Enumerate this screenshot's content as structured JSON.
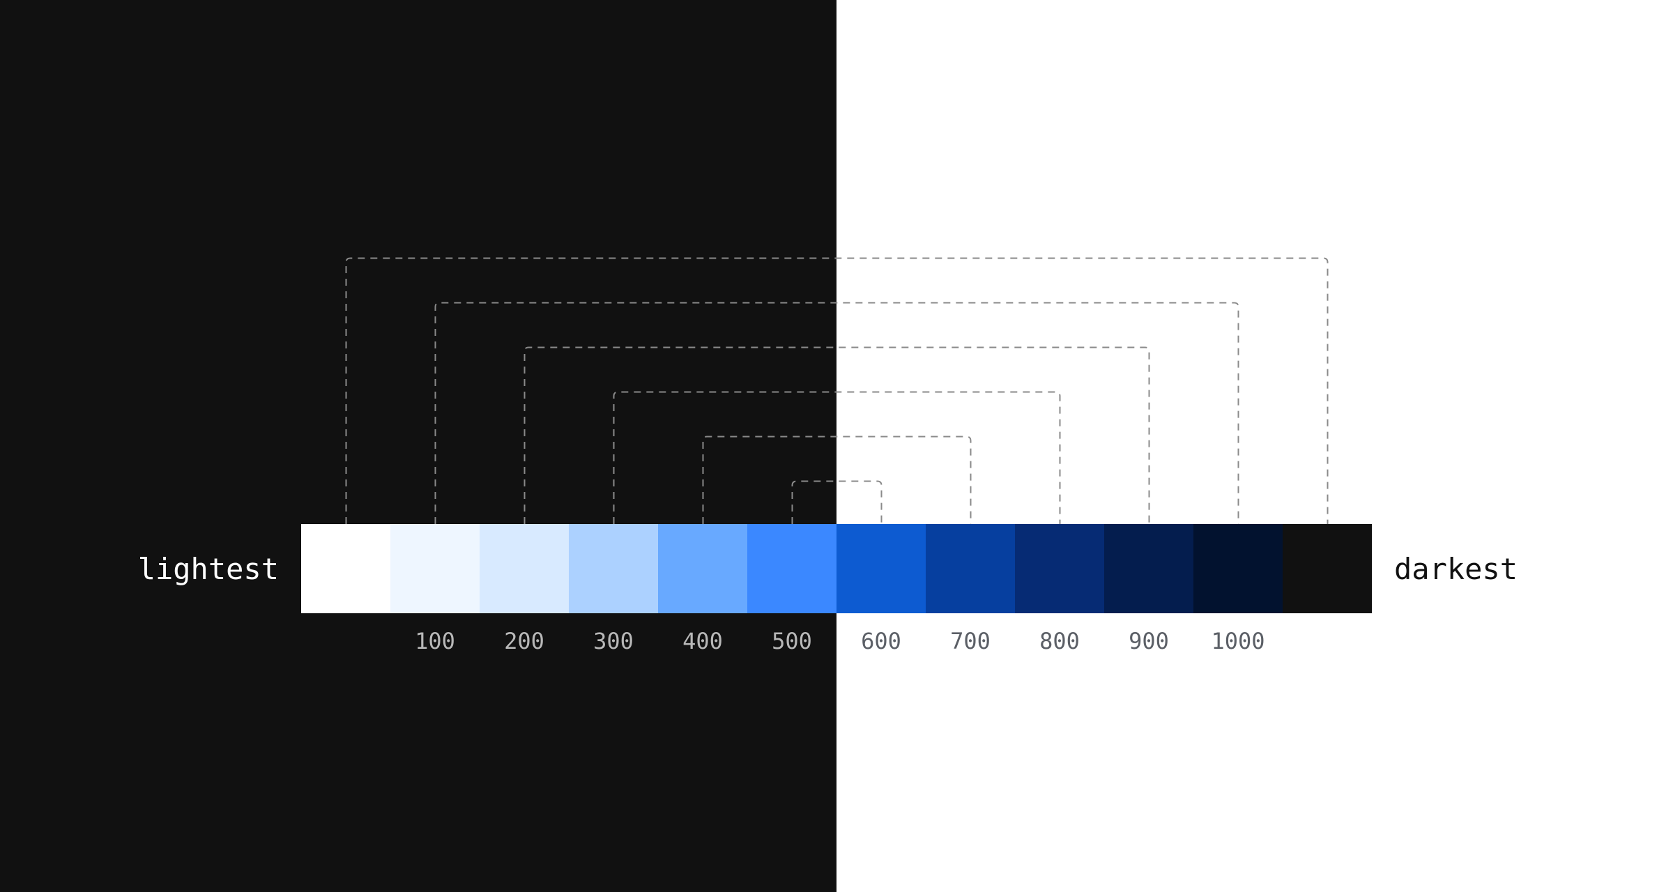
{
  "labels": {
    "lightest": "lightest",
    "darkest": "darkest"
  },
  "colors": {
    "dark_background": "#111111",
    "light_background": "#ffffff",
    "connector_line": "#8a8a8a",
    "step_label_on_dark": "#b8b8b8",
    "step_label_on_light": "#5b5f66"
  },
  "swatches": [
    {
      "step": "",
      "color": "#ffffff"
    },
    {
      "step": "100",
      "color": "#eef6ff"
    },
    {
      "step": "200",
      "color": "#d8eaff"
    },
    {
      "step": "300",
      "color": "#acd1ff"
    },
    {
      "step": "400",
      "color": "#68a9ff"
    },
    {
      "step": "500",
      "color": "#3b88ff"
    },
    {
      "step": "600",
      "color": "#0d5bd1"
    },
    {
      "step": "700",
      "color": "#063f9f"
    },
    {
      "step": "800",
      "color": "#062b74"
    },
    {
      "step": "900",
      "color": "#041d4e"
    },
    {
      "step": "1000",
      "color": "#02122f"
    },
    {
      "step": "",
      "color": "#111111"
    }
  ],
  "pairs": [
    [
      "lightest",
      "darkest"
    ],
    [
      "100",
      "1000"
    ],
    [
      "200",
      "900"
    ],
    [
      "300",
      "800"
    ],
    [
      "400",
      "700"
    ],
    [
      "500",
      "600"
    ]
  ]
}
